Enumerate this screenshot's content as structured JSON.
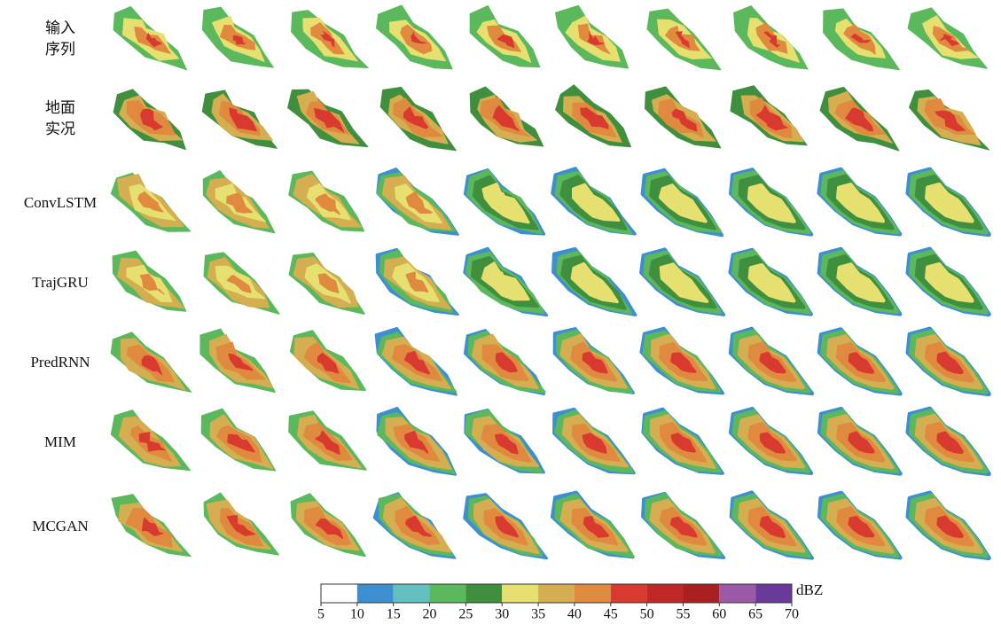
{
  "rows": [
    {
      "label": [
        "输入",
        "序列"
      ]
    },
    {
      "label": [
        "地面",
        "实况"
      ]
    },
    {
      "label": [
        "ConvLSTM"
      ]
    },
    {
      "label": [
        "TrajGRU"
      ]
    },
    {
      "label": [
        "PredRNN"
      ]
    },
    {
      "label": [
        "MIM"
      ]
    },
    {
      "label": [
        "MCGAN"
      ]
    }
  ],
  "colorbar": {
    "unit": "dBZ",
    "ticks": [
      5,
      10,
      15,
      20,
      25,
      30,
      35,
      40,
      45,
      50,
      55,
      60,
      65,
      70
    ],
    "colors": [
      "#ffffff",
      "#3d8fd0",
      "#62c0c0",
      "#5cb85c",
      "#3f8f3f",
      "#e6e070",
      "#d4ae50",
      "#e08a40",
      "#d83a30",
      "#c02828",
      "#a82020",
      "#9a5aa8",
      "#6a3a9a"
    ]
  }
}
